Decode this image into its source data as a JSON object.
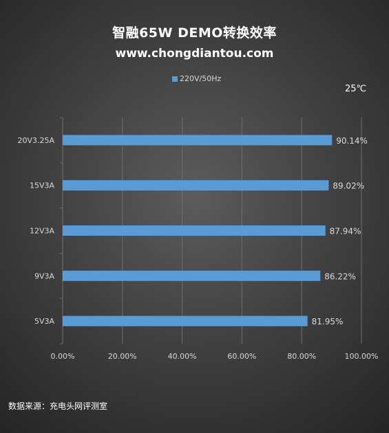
{
  "title": "智融65W  DEMO转换效率",
  "subtitle": "www.chongdiantou.com",
  "temperature": "25℃",
  "source": "数据来源：充电头网评测室",
  "colors": {
    "bar": "#5b9bd5",
    "grid": "#6e6e6e",
    "text": "#d9d9d9"
  },
  "chart_data": {
    "type": "bar",
    "orientation": "horizontal",
    "categories": [
      "20V3.25A",
      "15V3A",
      "12V3A",
      "9V3A",
      "5V3A"
    ],
    "series": [
      {
        "name": "220V/50Hz",
        "values": [
          90.14,
          89.02,
          87.94,
          86.22,
          81.95
        ],
        "labels": [
          "90.14%",
          "89.02%",
          "87.94%",
          "86.22%",
          "81.95%"
        ]
      }
    ],
    "xlim": [
      0,
      100
    ],
    "xticks": [
      "0.00%",
      "20.00%",
      "40.00%",
      "60.00%",
      "80.00%",
      "100.00%"
    ],
    "grid": true,
    "legend_position": "top"
  }
}
